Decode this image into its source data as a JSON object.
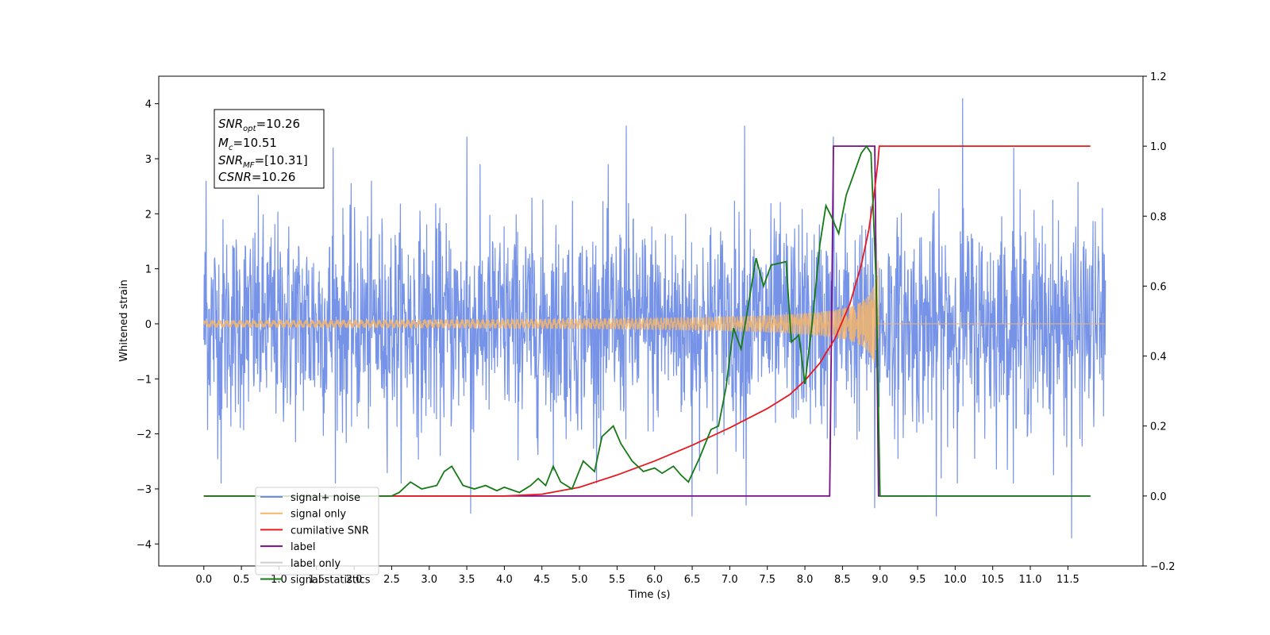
{
  "chart_data": {
    "type": "line",
    "xlabel": "Time (s)",
    "ylabel": "Whitened strain",
    "xlim": [
      -0.6,
      12.5
    ],
    "ylim": [
      -4.4,
      4.5
    ],
    "y2lim": [
      -0.2,
      1.2
    ],
    "x_ticks": [
      0.0,
      0.5,
      1.0,
      1.5,
      2.0,
      2.5,
      3.0,
      3.5,
      4.0,
      4.5,
      5.0,
      5.5,
      6.0,
      6.5,
      7.0,
      7.5,
      8.0,
      8.5,
      9.0,
      9.5,
      10.0,
      10.5,
      11.0,
      11.5
    ],
    "x_tick_labels": [
      "0.0",
      "0.5",
      "1.0",
      "1.5",
      "2.0",
      "2.5",
      "3.0",
      "3.5",
      "4.0",
      "4.5",
      "5.0",
      "5.5",
      "6.0",
      "6.5",
      "7.0",
      "7.5",
      "8.0",
      "8.5",
      "9.0",
      "9.5",
      "10.0",
      "10.5",
      "11.0",
      "11.5"
    ],
    "y_ticks": [
      -4,
      -3,
      -2,
      -1,
      0,
      1,
      2,
      3,
      4
    ],
    "y_tick_labels": [
      "−4",
      "−3",
      "−2",
      "−1",
      "0",
      "1",
      "2",
      "3",
      "4"
    ],
    "y2_ticks": [
      -0.2,
      0.0,
      0.2,
      0.4,
      0.6,
      0.8,
      1.0,
      1.2
    ],
    "y2_tick_labels": [
      "−0.2",
      "0.0",
      "0.2",
      "0.4",
      "0.6",
      "0.8",
      "1.0",
      "1.2"
    ],
    "grid": false,
    "legend_position": "lower-left",
    "annotation": {
      "lines": [
        {
          "base": "SNR",
          "sub": "opt",
          "value": "=10.26"
        },
        {
          "base": "M",
          "sub": "c",
          "value": "=10.51"
        },
        {
          "base": "SNR",
          "sub": "MF",
          "value": "=[10.31]"
        },
        {
          "base": "CSNR",
          "sub": "",
          "value": "=10.26"
        }
      ]
    },
    "series": [
      {
        "name": "signal+ noise",
        "color": "#6f8de6",
        "axis": "left",
        "kind": "noise",
        "x_range": [
          0.0,
          12.0
        ],
        "typical_envelope": 1.5,
        "min": -3.9,
        "max": 4.1,
        "spikes": [
          {
            "x": 0.03,
            "y": 2.6
          },
          {
            "x": 1.72,
            "y": 3.2
          },
          {
            "x": 3.5,
            "y": 3.4
          },
          {
            "x": 5.62,
            "y": 3.6
          },
          {
            "x": 7.2,
            "y": 3.6
          },
          {
            "x": 7.22,
            "y": -3.3
          },
          {
            "x": 8.38,
            "y": 3.4
          },
          {
            "x": 8.93,
            "y": -3.35
          },
          {
            "x": 10.1,
            "y": 4.1
          },
          {
            "x": 11.55,
            "y": -3.9
          },
          {
            "x": 9.75,
            "y": -3.5
          },
          {
            "x": 6.5,
            "y": -3.5
          },
          {
            "x": 3.55,
            "y": -3.45
          },
          {
            "x": 0.23,
            "y": -2.9
          },
          {
            "x": 10.78,
            "y": 3.2
          }
        ]
      },
      {
        "name": "signal only",
        "color": "#f5b56a",
        "axis": "left",
        "kind": "chirp",
        "x_range": [
          0.0,
          12.0
        ],
        "merger_time": 8.98,
        "peak_amplitude": 1.3
      },
      {
        "name": "cumilative SNR",
        "color": "#e8191f",
        "axis": "right",
        "points": [
          [
            0.0,
            0.0
          ],
          [
            4.0,
            0.0
          ],
          [
            4.5,
            0.005
          ],
          [
            5.0,
            0.025
          ],
          [
            5.5,
            0.06
          ],
          [
            6.0,
            0.1
          ],
          [
            6.5,
            0.145
          ],
          [
            7.0,
            0.195
          ],
          [
            7.5,
            0.25
          ],
          [
            7.8,
            0.29
          ],
          [
            8.0,
            0.33
          ],
          [
            8.2,
            0.38
          ],
          [
            8.4,
            0.45
          ],
          [
            8.6,
            0.55
          ],
          [
            8.75,
            0.66
          ],
          [
            8.85,
            0.76
          ],
          [
            8.92,
            0.86
          ],
          [
            8.97,
            0.95
          ],
          [
            8.99,
            1.0
          ],
          [
            11.8,
            1.0
          ]
        ]
      },
      {
        "name": "label",
        "color": "#7a0f8a",
        "axis": "right",
        "points": [
          [
            0.0,
            0.0
          ],
          [
            8.33,
            0.0
          ],
          [
            8.38,
            1.0
          ],
          [
            8.93,
            1.0
          ],
          [
            8.98,
            0.0
          ],
          [
            11.8,
            0.0
          ]
        ]
      },
      {
        "name": "label only",
        "color": "#d0d0d0",
        "axis": "right",
        "points": []
      },
      {
        "name": "signal statistics",
        "color": "#167a16",
        "axis": "right",
        "points": [
          [
            0.0,
            0.0
          ],
          [
            2.5,
            0.0
          ],
          [
            2.6,
            0.01
          ],
          [
            2.75,
            0.04
          ],
          [
            2.9,
            0.02
          ],
          [
            3.1,
            0.03
          ],
          [
            3.2,
            0.07
          ],
          [
            3.3,
            0.085
          ],
          [
            3.45,
            0.03
          ],
          [
            3.6,
            0.02
          ],
          [
            3.75,
            0.03
          ],
          [
            3.9,
            0.015
          ],
          [
            4.0,
            0.025
          ],
          [
            4.2,
            0.01
          ],
          [
            4.35,
            0.03
          ],
          [
            4.45,
            0.05
          ],
          [
            4.55,
            0.03
          ],
          [
            4.65,
            0.085
          ],
          [
            4.75,
            0.04
          ],
          [
            4.9,
            0.02
          ],
          [
            5.05,
            0.1
          ],
          [
            5.2,
            0.07
          ],
          [
            5.3,
            0.17
          ],
          [
            5.45,
            0.2
          ],
          [
            5.55,
            0.15
          ],
          [
            5.7,
            0.1
          ],
          [
            5.85,
            0.07
          ],
          [
            6.0,
            0.08
          ],
          [
            6.1,
            0.065
          ],
          [
            6.25,
            0.085
          ],
          [
            6.35,
            0.06
          ],
          [
            6.45,
            0.04
          ],
          [
            6.6,
            0.11
          ],
          [
            6.75,
            0.19
          ],
          [
            6.85,
            0.2
          ],
          [
            6.95,
            0.31
          ],
          [
            7.05,
            0.48
          ],
          [
            7.15,
            0.42
          ],
          [
            7.25,
            0.55
          ],
          [
            7.35,
            0.68
          ],
          [
            7.45,
            0.6
          ],
          [
            7.55,
            0.66
          ],
          [
            7.75,
            0.67
          ],
          [
            7.82,
            0.44
          ],
          [
            7.92,
            0.46
          ],
          [
            8.0,
            0.32
          ],
          [
            8.1,
            0.5
          ],
          [
            8.2,
            0.72
          ],
          [
            8.28,
            0.83
          ],
          [
            8.35,
            0.8
          ],
          [
            8.45,
            0.75
          ],
          [
            8.55,
            0.86
          ],
          [
            8.65,
            0.92
          ],
          [
            8.75,
            0.98
          ],
          [
            8.82,
            1.0
          ],
          [
            8.88,
            0.98
          ],
          [
            8.95,
            0.6
          ],
          [
            9.0,
            0.0
          ],
          [
            11.8,
            0.0
          ]
        ]
      }
    ]
  }
}
